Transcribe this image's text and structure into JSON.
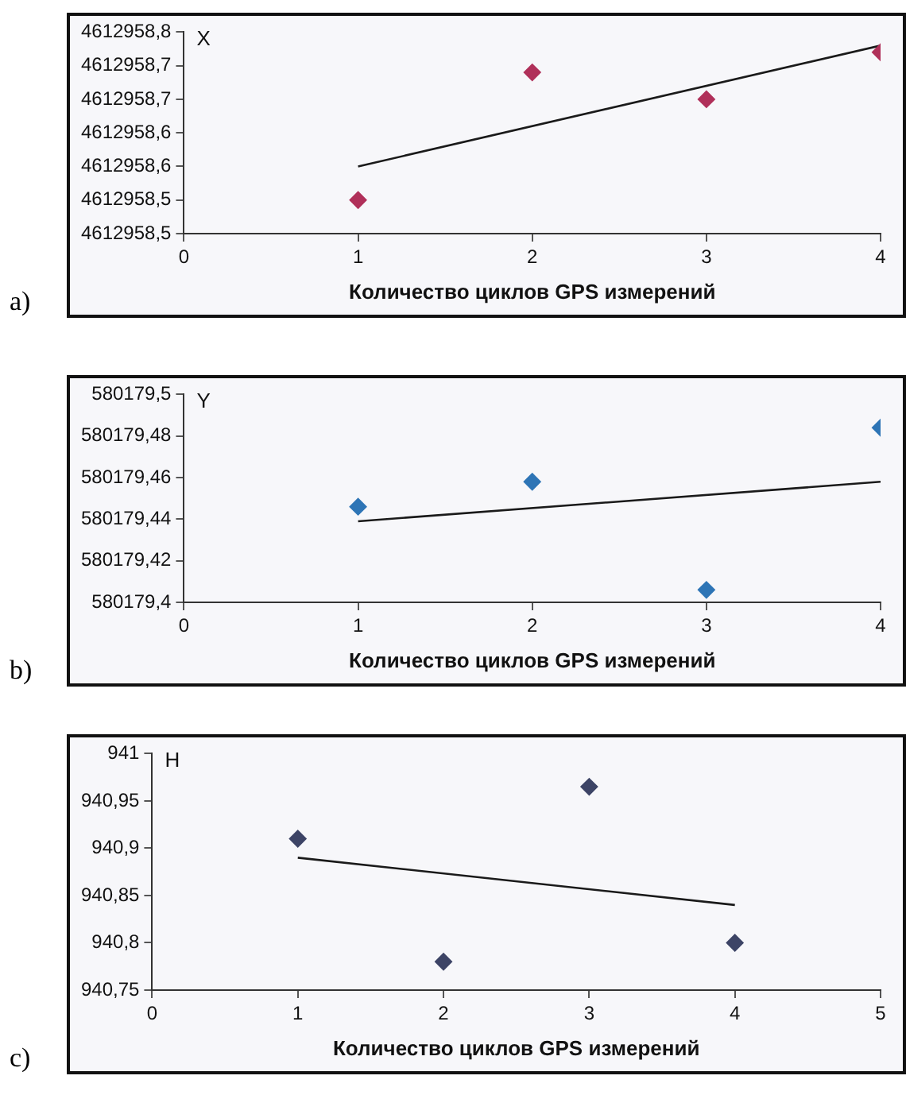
{
  "chart_data": [
    {
      "type": "scatter",
      "ylabel": "X",
      "xlabel": "Количество циклов GPS измерений",
      "annotations": [
        "a)"
      ],
      "xlim": [
        0,
        4
      ],
      "xticks": [
        0,
        1,
        2,
        3,
        4
      ],
      "ylim": [
        4612958.45,
        4612958.75
      ],
      "yticks": [
        {
          "value": 4612958.45,
          "label": "4612958,5"
        },
        {
          "value": 4612958.5,
          "label": "4612958,5"
        },
        {
          "value": 4612958.55,
          "label": "4612958,6"
        },
        {
          "value": 4612958.6,
          "label": "4612958,6"
        },
        {
          "value": 4612958.65,
          "label": "4612958,7"
        },
        {
          "value": 4612958.7,
          "label": "4612958,7"
        },
        {
          "value": 4612958.75,
          "label": "4612958,8"
        }
      ],
      "grid": false,
      "legend": false,
      "series": [
        {
          "marker": "diamond",
          "color": "#b0305a",
          "x": [
            1,
            2,
            3,
            4
          ],
          "values": [
            4612958.5,
            4612958.69,
            4612958.65,
            4612958.72
          ]
        },
        {
          "type": "line",
          "marker": "none",
          "color": "#1a1a1a",
          "x": [
            1,
            4
          ],
          "values": [
            4612958.55,
            4612958.73
          ]
        }
      ]
    },
    {
      "type": "scatter",
      "ylabel": "Y",
      "xlabel": "Количество циклов GPS измерений",
      "annotations": [
        "b)"
      ],
      "xlim": [
        0,
        4
      ],
      "xticks": [
        0,
        1,
        2,
        3,
        4
      ],
      "ylim": [
        580179.4,
        580179.5
      ],
      "yticks": [
        {
          "value": 580179.4,
          "label": "580179,4"
        },
        {
          "value": 580179.42,
          "label": "580179,42"
        },
        {
          "value": 580179.44,
          "label": "580179,44"
        },
        {
          "value": 580179.46,
          "label": "580179,46"
        },
        {
          "value": 580179.48,
          "label": "580179,48"
        },
        {
          "value": 580179.5,
          "label": "580179,5"
        }
      ],
      "grid": false,
      "legend": false,
      "series": [
        {
          "marker": "diamond",
          "color": "#2e75b6",
          "x": [
            1,
            2,
            3,
            4
          ],
          "values": [
            580179.446,
            580179.458,
            580179.406,
            580179.484
          ]
        },
        {
          "type": "line",
          "marker": "none",
          "color": "#1a1a1a",
          "x": [
            1,
            4
          ],
          "values": [
            580179.439,
            580179.458
          ]
        }
      ]
    },
    {
      "type": "scatter",
      "ylabel": "H",
      "xlabel": "Количество циклов GPS измерений",
      "annotations": [
        "c)"
      ],
      "xlim": [
        0,
        5
      ],
      "xticks": [
        0,
        1,
        2,
        3,
        4,
        5
      ],
      "ylim": [
        940.75,
        941
      ],
      "yticks": [
        {
          "value": 940.75,
          "label": "940,75"
        },
        {
          "value": 940.8,
          "label": "940,8"
        },
        {
          "value": 940.85,
          "label": "940,85"
        },
        {
          "value": 940.9,
          "label": "940,9"
        },
        {
          "value": 940.95,
          "label": "940,95"
        },
        {
          "value": 941,
          "label": "941"
        }
      ],
      "grid": false,
      "legend": false,
      "series": [
        {
          "marker": "diamond",
          "color": "#3d4466",
          "x": [
            1,
            2,
            3,
            4
          ],
          "values": [
            940.91,
            940.78,
            940.965,
            940.8
          ]
        },
        {
          "type": "line",
          "marker": "none",
          "color": "#1a1a1a",
          "x": [
            1,
            4
          ],
          "values": [
            940.89,
            940.84
          ]
        }
      ]
    }
  ]
}
